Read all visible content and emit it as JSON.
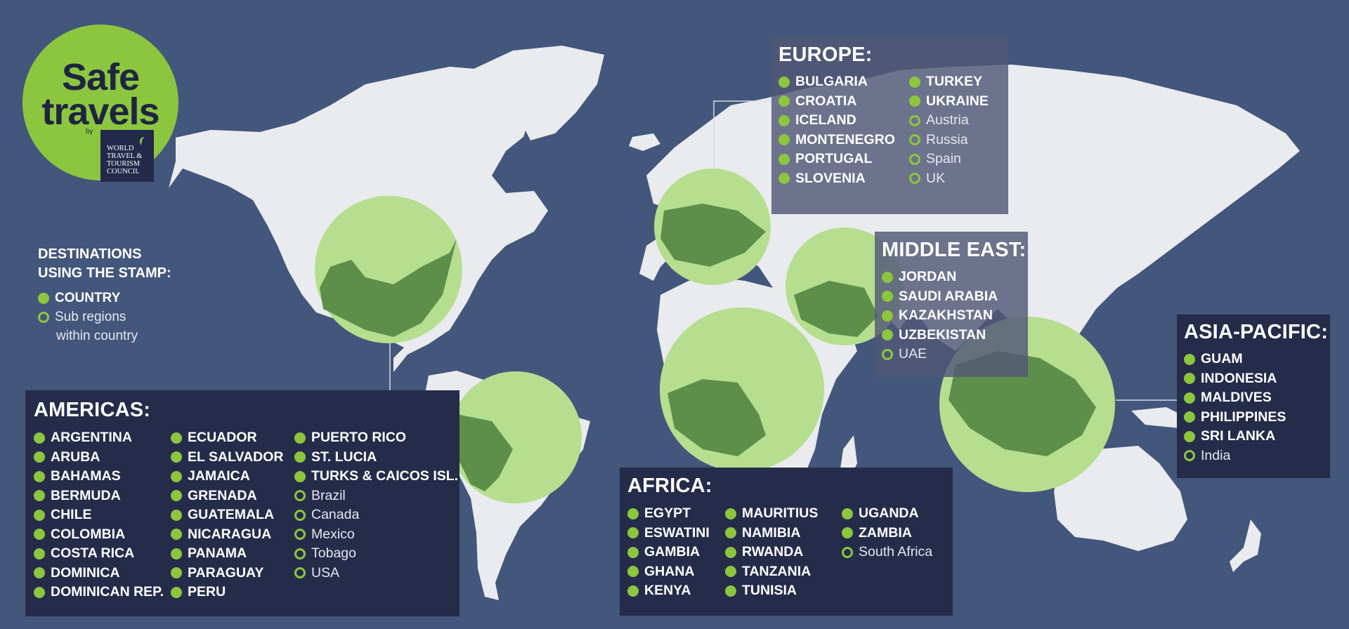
{
  "logo": {
    "line1": "Safe",
    "line2": "travels",
    "by": "by",
    "org_lines": [
      "WORLD",
      "TRAVEL &",
      "TOURISM",
      "COUNCIL"
    ]
  },
  "legend": {
    "title_line1": "DESTINATIONS",
    "title_line2": "USING THE STAMP:",
    "country": "COUNTRY",
    "sub_line1": "Sub regions",
    "sub_line2": "within country"
  },
  "colors": {
    "background": "#43567b",
    "land": "#e9ebee",
    "circle_light": "#b5df8e",
    "circle_dark": "#5d8f4b",
    "accent_green": "#8cc63f",
    "panel_dark": "#252c4a"
  },
  "regions": {
    "europe": {
      "title": "EUROPE:",
      "columns": [
        [
          {
            "name": "BULGARIA",
            "type": "country"
          },
          {
            "name": "CROATIA",
            "type": "country"
          },
          {
            "name": "ICELAND",
            "type": "country"
          },
          {
            "name": "MONTENEGRO",
            "type": "country"
          },
          {
            "name": "PORTUGAL",
            "type": "country"
          },
          {
            "name": "SLOVENIA",
            "type": "country"
          }
        ],
        [
          {
            "name": "TURKEY",
            "type": "country"
          },
          {
            "name": "UKRAINE",
            "type": "country"
          },
          {
            "name": "Austria",
            "type": "sub"
          },
          {
            "name": "Russia",
            "type": "sub"
          },
          {
            "name": "Spain",
            "type": "sub"
          },
          {
            "name": "UK",
            "type": "sub"
          }
        ]
      ]
    },
    "middle_east": {
      "title": "MIDDLE EAST:",
      "columns": [
        [
          {
            "name": "JORDAN",
            "type": "country"
          },
          {
            "name": "SAUDI ARABIA",
            "type": "country"
          },
          {
            "name": "KAZAKHSTAN",
            "type": "country"
          },
          {
            "name": "UZBEKISTAN",
            "type": "country"
          },
          {
            "name": "UAE",
            "type": "sub"
          }
        ]
      ]
    },
    "asia_pacific": {
      "title": "ASIA-PACIFIC:",
      "columns": [
        [
          {
            "name": "GUAM",
            "type": "country"
          },
          {
            "name": "INDONESIA",
            "type": "country"
          },
          {
            "name": "MALDIVES",
            "type": "country"
          },
          {
            "name": "PHILIPPINES",
            "type": "country"
          },
          {
            "name": "SRI LANKA",
            "type": "country"
          },
          {
            "name": "India",
            "type": "sub"
          }
        ]
      ]
    },
    "africa": {
      "title": "AFRICA:",
      "columns": [
        [
          {
            "name": "EGYPT",
            "type": "country"
          },
          {
            "name": "ESWATINI",
            "type": "country"
          },
          {
            "name": "GAMBIA",
            "type": "country"
          },
          {
            "name": "GHANA",
            "type": "country"
          },
          {
            "name": "KENYA",
            "type": "country"
          }
        ],
        [
          {
            "name": "MAURITIUS",
            "type": "country"
          },
          {
            "name": "NAMIBIA",
            "type": "country"
          },
          {
            "name": "RWANDA",
            "type": "country"
          },
          {
            "name": "TANZANIA",
            "type": "country"
          },
          {
            "name": "TUNISIA",
            "type": "country"
          }
        ],
        [
          {
            "name": "UGANDA",
            "type": "country"
          },
          {
            "name": "ZAMBIA",
            "type": "country"
          },
          {
            "name": "South Africa",
            "type": "sub"
          }
        ]
      ]
    },
    "americas": {
      "title": "AMERICAS:",
      "columns": [
        [
          {
            "name": "ARGENTINA",
            "type": "country"
          },
          {
            "name": "ARUBA",
            "type": "country"
          },
          {
            "name": "BAHAMAS",
            "type": "country"
          },
          {
            "name": "BERMUDA",
            "type": "country"
          },
          {
            "name": "CHILE",
            "type": "country"
          },
          {
            "name": "COLOMBIA",
            "type": "country"
          },
          {
            "name": "COSTA RICA",
            "type": "country"
          },
          {
            "name": "DOMINICA",
            "type": "country"
          },
          {
            "name": "DOMINICAN REP.",
            "type": "country"
          }
        ],
        [
          {
            "name": "ECUADOR",
            "type": "country"
          },
          {
            "name": "EL SALVADOR",
            "type": "country"
          },
          {
            "name": "JAMAICA",
            "type": "country"
          },
          {
            "name": "GRENADA",
            "type": "country"
          },
          {
            "name": "GUATEMALA",
            "type": "country"
          },
          {
            "name": "NICARAGUA",
            "type": "country"
          },
          {
            "name": "PANAMA",
            "type": "country"
          },
          {
            "name": "PARAGUAY",
            "type": "country"
          },
          {
            "name": "PERU",
            "type": "country"
          }
        ],
        [
          {
            "name": "PUERTO RICO",
            "type": "country"
          },
          {
            "name": "ST. LUCIA",
            "type": "country"
          },
          {
            "name": "TURKS & CAICOS ISL.",
            "type": "country"
          },
          {
            "name": "Brazil",
            "type": "sub"
          },
          {
            "name": "Canada",
            "type": "sub"
          },
          {
            "name": "Mexico",
            "type": "sub"
          },
          {
            "name": "Tobago",
            "type": "sub"
          },
          {
            "name": "USA",
            "type": "sub"
          }
        ]
      ]
    }
  }
}
